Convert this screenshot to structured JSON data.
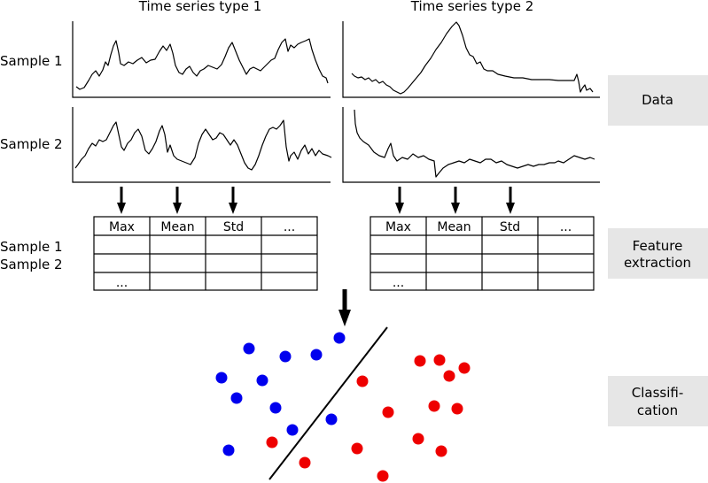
{
  "columns": [
    "Time series type 1",
    "Time series type 2"
  ],
  "rows": [
    "Sample 1",
    "Sample 2"
  ],
  "tables": [
    {
      "headers": [
        "Max",
        "Mean",
        "Std",
        "..."
      ],
      "rows": [
        [
          "",
          "",
          "",
          ""
        ],
        [
          "",
          "",
          "",
          ""
        ],
        [
          "...",
          "",
          "",
          ""
        ]
      ]
    },
    {
      "headers": [
        "Max",
        "Mean",
        "Std",
        "..."
      ],
      "rows": [
        [
          "",
          "",
          "",
          ""
        ],
        [
          "",
          "",
          "",
          ""
        ],
        [
          "...",
          "",
          "",
          ""
        ]
      ]
    }
  ],
  "feature_row_labels": [
    "Sample 1",
    "Sample 2"
  ],
  "stages": [
    {
      "lines": [
        "Data"
      ]
    },
    {
      "lines": [
        "Feature",
        "extraction"
      ]
    },
    {
      "lines": [
        "Classifi-",
        "cation"
      ]
    }
  ],
  "classes": {
    "blue": {
      "color": "#0000ee"
    },
    "red": {
      "color": "#ee0000"
    }
  }
}
